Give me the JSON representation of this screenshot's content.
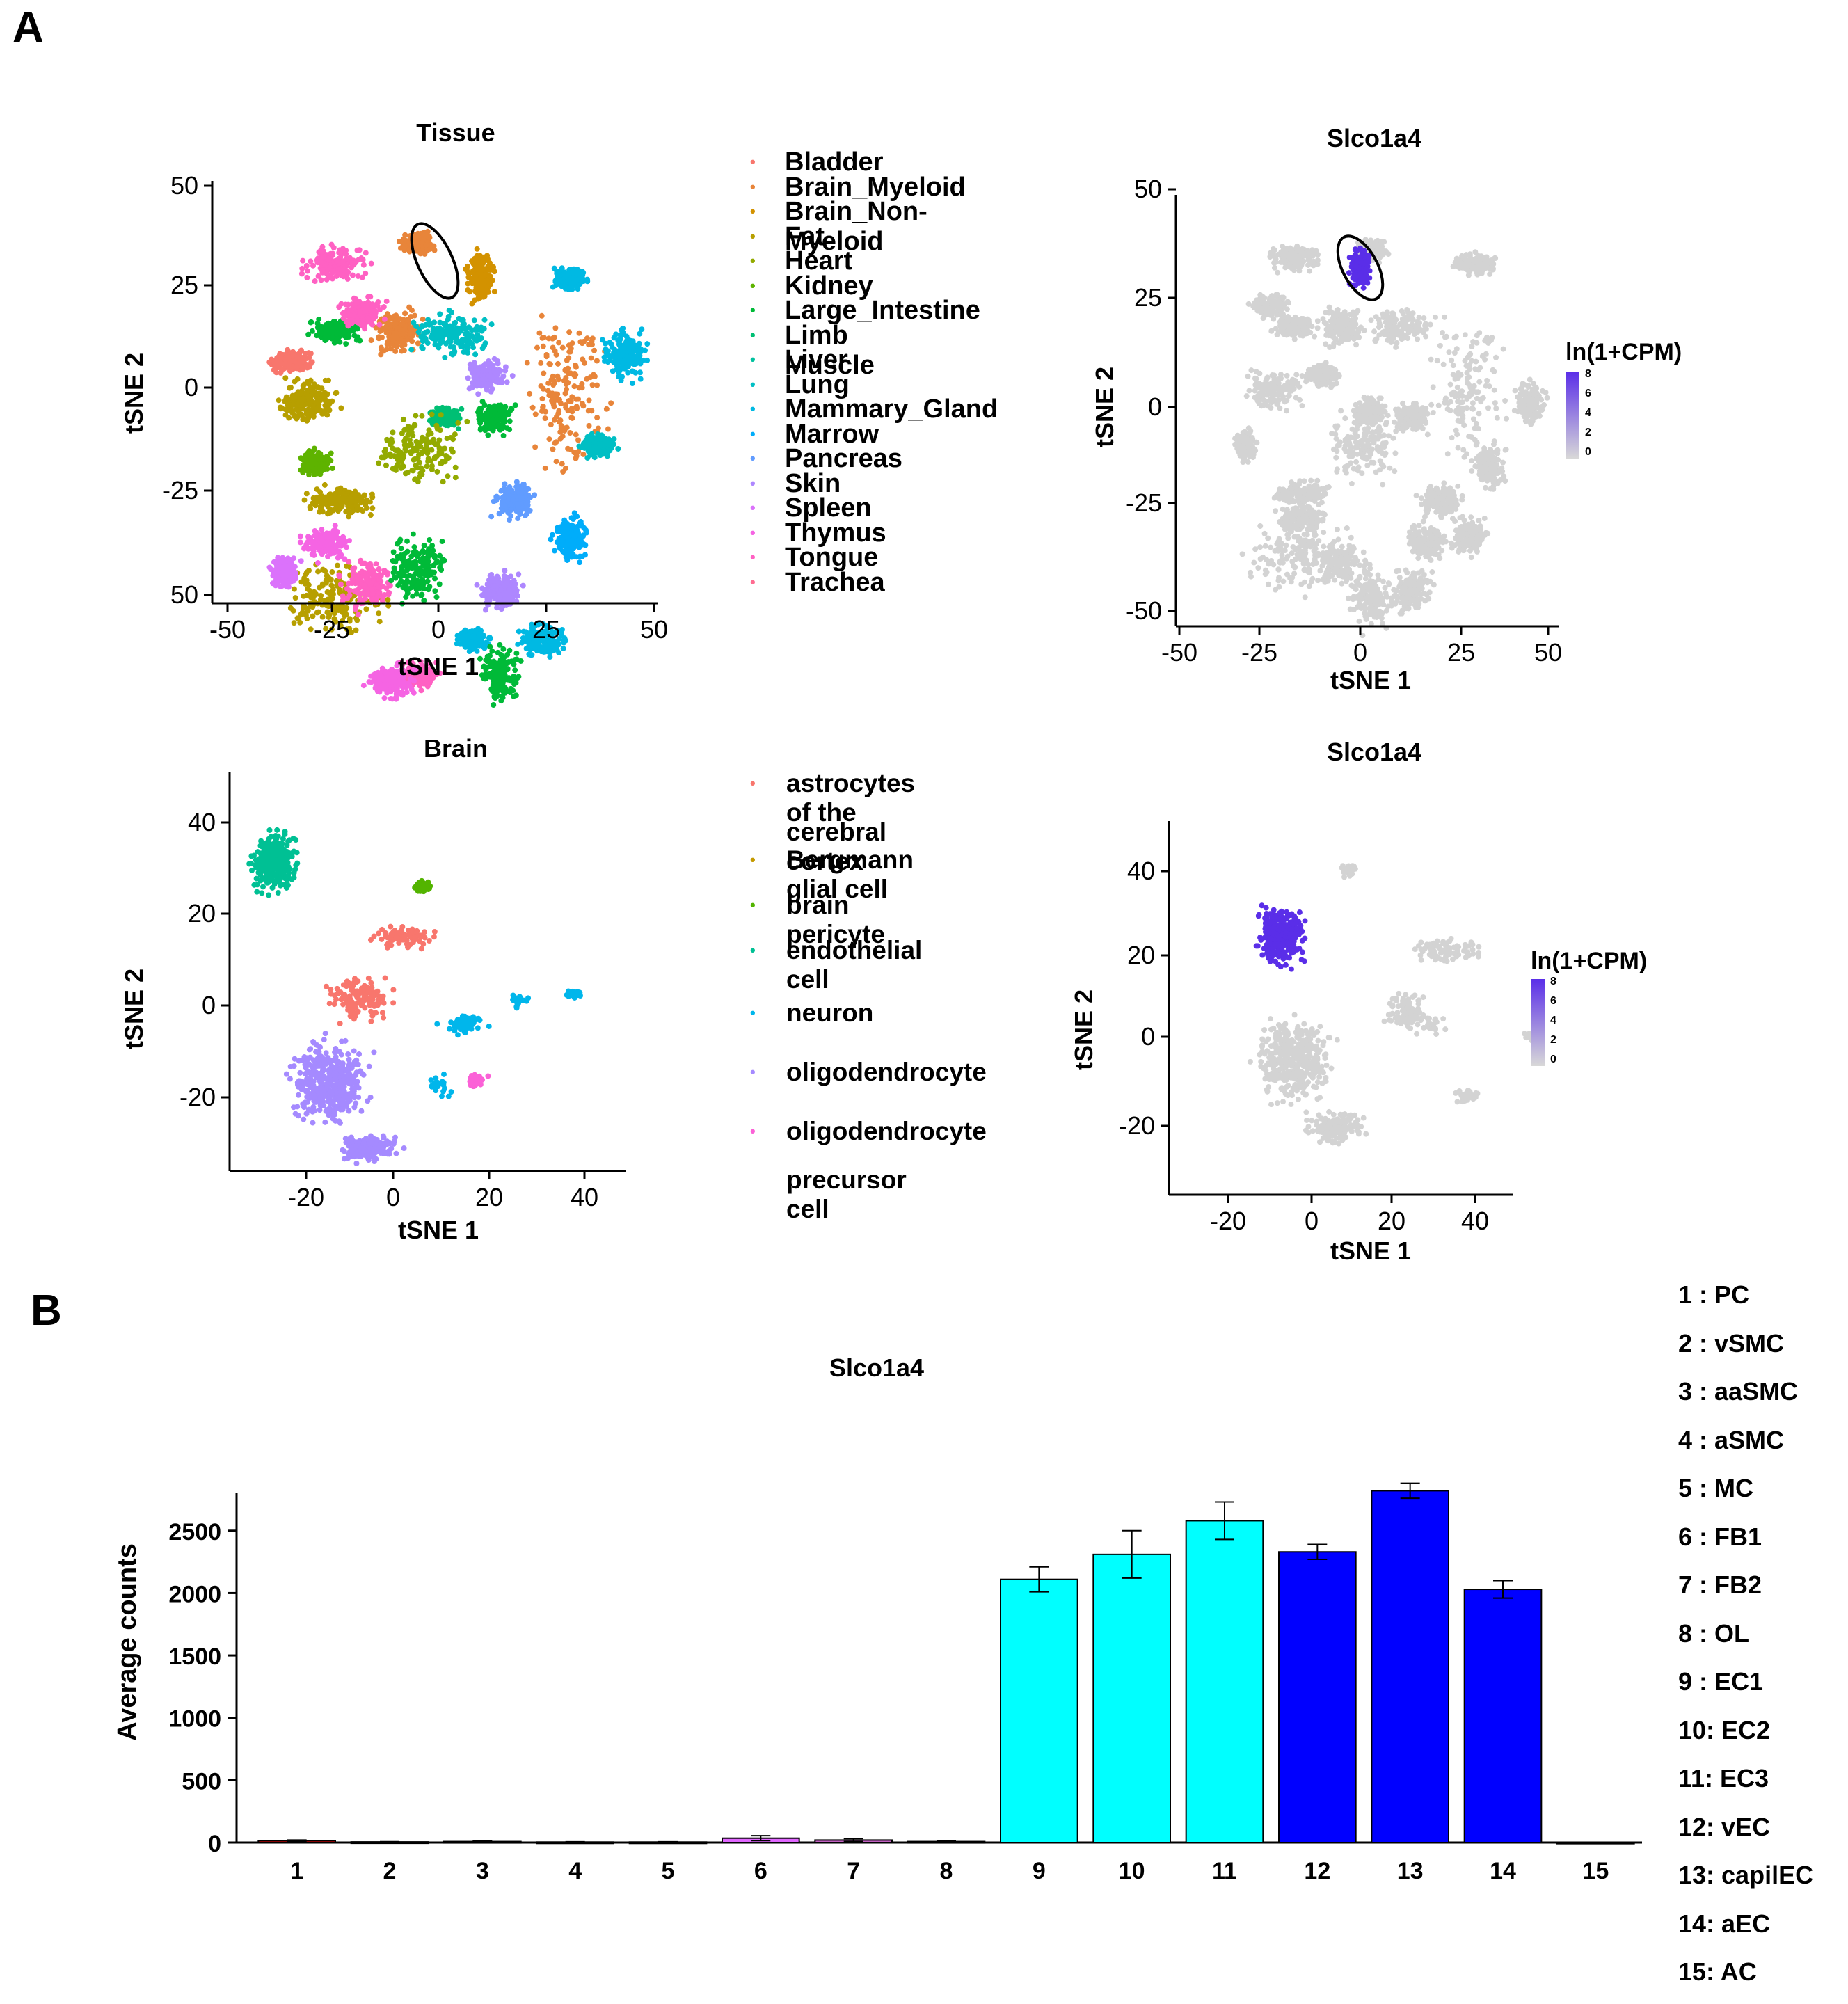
{
  "panels": {
    "a": "A",
    "b": "B"
  },
  "plot1": {
    "title": "Tissue",
    "xlabel": "tSNE 1",
    "ylabel": "tSNE 2",
    "xticks": [
      "-50",
      "-25",
      "0",
      "25",
      "50"
    ],
    "yticks": [
      "50",
      "25",
      "0",
      "-25",
      "50"
    ],
    "legend": [
      {
        "label": "Bladder",
        "color": "#F8766D"
      },
      {
        "label": "Brain_Myeloid",
        "color": "#E8853A"
      },
      {
        "label": "Brain_Non-Myeloid",
        "color": "#D39200"
      },
      {
        "label": "Fat",
        "color": "#B79F00"
      },
      {
        "label": "Heart",
        "color": "#93AA00"
      },
      {
        "label": "Kidney",
        "color": "#5EB300"
      },
      {
        "label": "Large_Intestine",
        "color": "#00BA38"
      },
      {
        "label": "Limb Muscle",
        "color": "#00BF74"
      },
      {
        "label": "Liver",
        "color": "#00C19F"
      },
      {
        "label": "Lung",
        "color": "#00BFC4"
      },
      {
        "label": "Mammary_Gland",
        "color": "#00B9E3"
      },
      {
        "label": "Marrow",
        "color": "#00ADFA"
      },
      {
        "label": "Pancreas",
        "color": "#619CFF"
      },
      {
        "label": "Skin",
        "color": "#AE87FF"
      },
      {
        "label": "Spleen",
        "color": "#DB72FB"
      },
      {
        "label": "Thymus",
        "color": "#F564E3"
      },
      {
        "label": "Tongue",
        "color": "#FF61C3"
      },
      {
        "label": "Trachea",
        "color": "#FF6C91"
      }
    ]
  },
  "plot2": {
    "title": "Slco1a4",
    "xlabel": "tSNE 1",
    "ylabel": "tSNE 2",
    "xticks": [
      "-50",
      "-25",
      "0",
      "25",
      "50"
    ],
    "yticks": [
      "50",
      "25",
      "0",
      "-25",
      "-50"
    ],
    "scale_title": "ln(1+CPM)",
    "scale_ticks": [
      "8",
      "6",
      "4",
      "2",
      "0"
    ],
    "scale_low": "#d3d3d3",
    "scale_high": "#5a2ee8"
  },
  "plot3": {
    "title": "Brain",
    "xlabel": "tSNE 1",
    "ylabel": "tSNE 2",
    "xticks": [
      "-20",
      "0",
      "20",
      "40"
    ],
    "yticks": [
      "40",
      "20",
      "0",
      "-20"
    ],
    "legend": [
      {
        "lines": [
          "astrocytes of the",
          "cerebral cortex"
        ],
        "color": "#F8766D"
      },
      {
        "lines": [
          "Bergmann glial cell"
        ],
        "color": "#C49A00"
      },
      {
        "lines": [
          "brain pericyte"
        ],
        "color": "#53B400"
      },
      {
        "lines": [
          "endothelial cell"
        ],
        "color": "#00C094"
      },
      {
        "lines": [
          "neuron"
        ],
        "color": "#00B6EB"
      },
      {
        "lines": [
          "oligodendrocyte"
        ],
        "color": "#A58AFF"
      },
      {
        "lines": [
          "oligodendrocyte",
          "precursor cell"
        ],
        "color": "#FB61D7"
      }
    ]
  },
  "plot4": {
    "title": "Slco1a4",
    "xlabel": "tSNE 1",
    "ylabel": "tSNE 2",
    "xticks": [
      "-20",
      "0",
      "20",
      "40"
    ],
    "yticks": [
      "40",
      "20",
      "0",
      "-20"
    ],
    "scale_title": "ln(1+CPM)",
    "scale_ticks": [
      "8",
      "6",
      "4",
      "2",
      "0"
    ]
  },
  "chart_data": {
    "type": "bar",
    "title": "Slco1a4",
    "xlabel": "",
    "ylabel": "Average counts",
    "ylim": [
      0,
      2800
    ],
    "yticks": [
      0,
      500,
      1000,
      1500,
      2000,
      2500
    ],
    "categories": [
      "1",
      "2",
      "3",
      "4",
      "5",
      "6",
      "7",
      "8",
      "9",
      "10",
      "11",
      "12",
      "13",
      "14",
      "15"
    ],
    "values": [
      15,
      5,
      8,
      4,
      4,
      35,
      20,
      8,
      2110,
      2310,
      2580,
      2330,
      2820,
      2030,
      2
    ],
    "errors": [
      5,
      2,
      3,
      2,
      2,
      20,
      12,
      3,
      100,
      190,
      150,
      60,
      60,
      70,
      1
    ],
    "colors": [
      "#c00000",
      "#404040",
      "#404040",
      "#404040",
      "#404040",
      "#e066ff",
      "#c060c0",
      "#404040",
      "#00ffff",
      "#00ffff",
      "#00ffff",
      "#0000ff",
      "#0000ff",
      "#0000ff",
      "#404040"
    ]
  },
  "cell_codes": [
    "1 : PC",
    "2 : vSMC",
    "3 : aaSMC",
    "4 : aSMC",
    "5 : MC",
    "6 : FB1",
    "7 : FB2",
    "8 : OL",
    "9 : EC1",
    "10: EC2",
    "11: EC3",
    "12: vEC",
    "13: capilEC",
    "14: aEC",
    "15: AC"
  ]
}
